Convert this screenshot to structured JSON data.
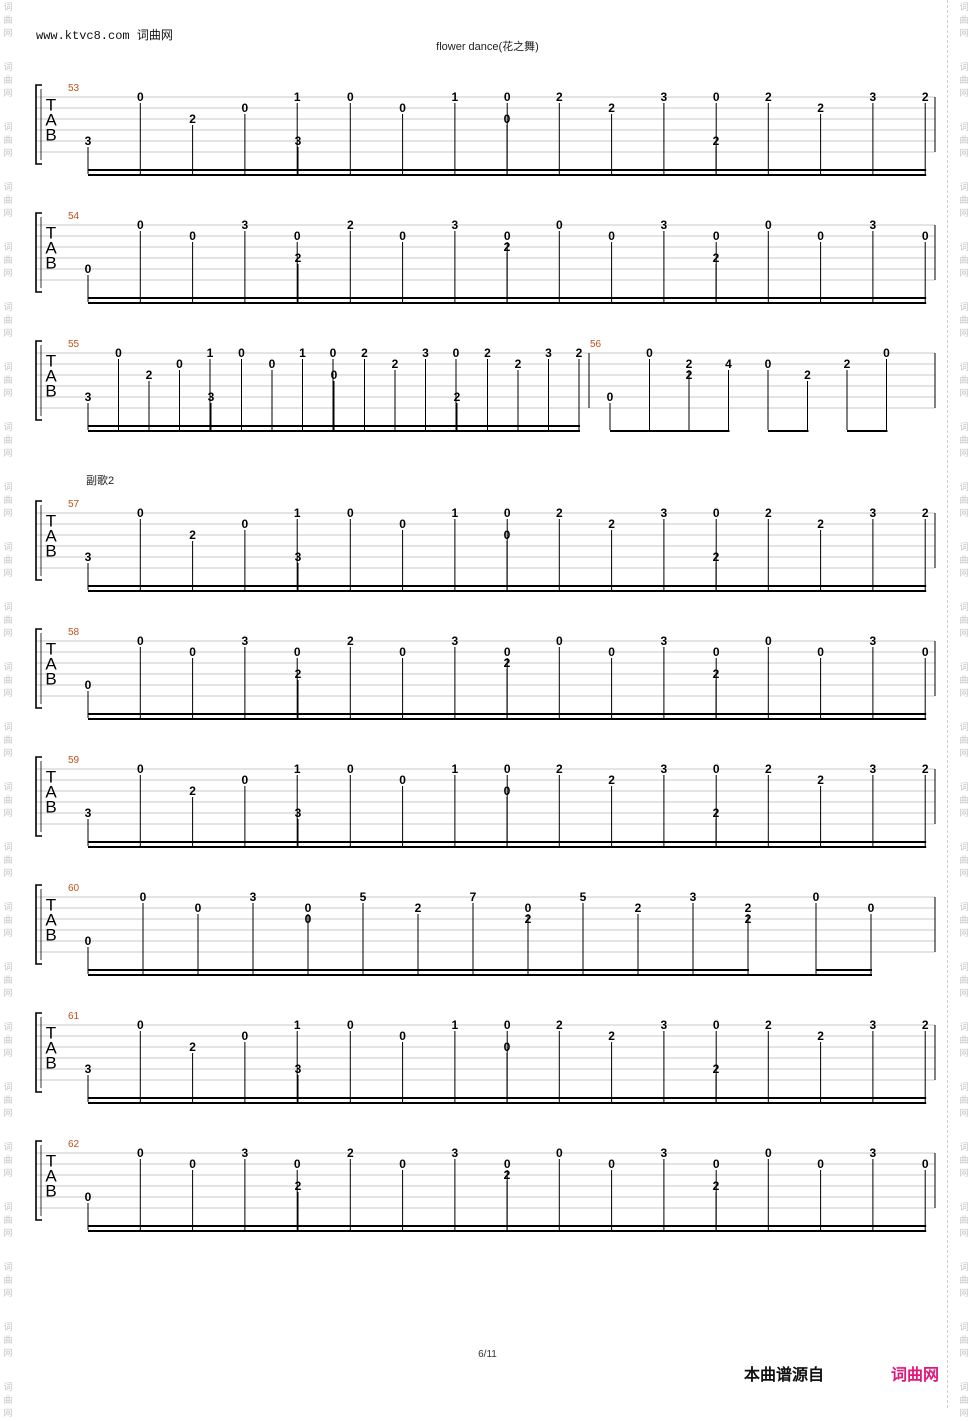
{
  "header": {
    "site": "www.ktvc8.com 词曲网",
    "title": "flower dance(花之舞)"
  },
  "section_label": "副歌2",
  "clef_letters": [
    "T",
    "A",
    "B"
  ],
  "watermark": [
    "词",
    "曲",
    "网"
  ],
  "footer": {
    "page": "6/11",
    "source": "本曲谱源自",
    "brand": "词曲网",
    "brand_color": "#e2167a"
  },
  "measure_number_color": "#c0501a",
  "systems": [
    {
      "measure": "53",
      "bars": [
        {
          "notes": [
            {
              "s": "B",
              "f": "3"
            },
            {
              "s": "T",
              "f": "0"
            },
            {
              "s": "A",
              "f": "2"
            },
            {
              "s": "TA",
              "f": "0"
            },
            {
              "s": "T",
              "f": "1"
            }
          ]
        },
        {
          "notes": [
            {
              "s": "B",
              "f": "3"
            },
            {
              "s": "T",
              "f": "0"
            },
            {
              "s": "TA",
              "f": "0"
            },
            {
              "s": "T",
              "f": "1"
            },
            {
              "s": "T",
              "f": "0"
            }
          ]
        },
        {
          "notes": [
            {
              "s": "A",
              "f": "0"
            },
            {
              "s": "T",
              "f": "2"
            },
            {
              "s": "TA",
              "f": "2"
            },
            {
              "s": "T",
              "f": "3"
            },
            {
              "s": "T",
              "f": "0"
            }
          ]
        },
        {
          "notes": [
            {
              "s": "B",
              "f": "2"
            },
            {
              "s": "T",
              "f": "2"
            },
            {
              "s": "TA",
              "f": "2"
            },
            {
              "s": "T",
              "f": "3"
            },
            {
              "s": "T",
              "f": "2"
            }
          ]
        }
      ]
    },
    {
      "measure": "54",
      "bars": [
        {
          "notes": [
            {
              "s": "B",
              "f": "0"
            },
            {
              "s": "T",
              "f": "0"
            },
            {
              "s": "TA",
              "f": "0"
            },
            {
              "s": "T",
              "f": "3"
            },
            {
              "s": "TA",
              "f": "0"
            }
          ]
        },
        {
          "notes": [
            {
              "s": "AB",
              "f": "2"
            },
            {
              "s": "T",
              "f": "2"
            },
            {
              "s": "TA",
              "f": "0"
            },
            {
              "s": "T",
              "f": "3"
            },
            {
              "s": "TA",
              "f": "0"
            }
          ]
        },
        {
          "notes": [
            {
              "s": "A",
              "f": "2"
            },
            {
              "s": "T",
              "f": "0"
            },
            {
              "s": "TA",
              "f": "0"
            },
            {
              "s": "T",
              "f": "3"
            },
            {
              "s": "TA",
              "f": "0"
            }
          ]
        },
        {
          "notes": [
            {
              "s": "AB",
              "f": "2"
            },
            {
              "s": "T",
              "f": "0"
            },
            {
              "s": "TA",
              "f": "0"
            },
            {
              "s": "T",
              "f": "3"
            },
            {
              "s": "TA",
              "f": "0"
            }
          ]
        }
      ]
    },
    {
      "measure": "55",
      "measure2": "56",
      "bars": [
        {
          "notes": [
            {
              "s": "B",
              "f": "3"
            },
            {
              "s": "T",
              "f": "0"
            },
            {
              "s": "A",
              "f": "2"
            },
            {
              "s": "TA",
              "f": "0"
            },
            {
              "s": "T",
              "f": "1"
            }
          ]
        },
        {
          "notes": [
            {
              "s": "B",
              "f": "3"
            },
            {
              "s": "T",
              "f": "0"
            },
            {
              "s": "TA",
              "f": "0"
            },
            {
              "s": "T",
              "f": "1"
            },
            {
              "s": "T",
              "f": "0"
            }
          ]
        },
        {
          "notes": [
            {
              "s": "A",
              "f": "0"
            },
            {
              "s": "T",
              "f": "2"
            },
            {
              "s": "TA",
              "f": "2"
            },
            {
              "s": "T",
              "f": "3"
            },
            {
              "s": "T",
              "f": "0"
            }
          ]
        },
        {
          "notes": [
            {
              "s": "B",
              "f": "2"
            },
            {
              "s": "T",
              "f": "2"
            },
            {
              "s": "TA",
              "f": "2"
            },
            {
              "s": "T",
              "f": "3"
            },
            {
              "s": "T",
              "f": "2"
            }
          ]
        }
      ],
      "bars2": [
        {
          "notes": [
            {
              "s": "B",
              "f": "0"
            },
            {
              "s": "T",
              "f": "0"
            },
            {
              "s": "A",
              "f": "2"
            }
          ]
        },
        {
          "notes": [
            {
              "s": "TA",
              "f": "2"
            },
            {
              "s": "TA",
              "f": "4"
            }
          ]
        },
        {
          "notes": [
            {
              "s": "TA",
              "f": "0"
            },
            {
              "s": "A",
              "f": "2"
            }
          ]
        },
        {
          "notes": [
            {
              "s": "TA",
              "f": "2"
            },
            {
              "s": "T",
              "f": "0"
            }
          ]
        }
      ]
    },
    {
      "measure": "57",
      "bars": [
        {
          "notes": [
            {
              "s": "B",
              "f": "3"
            },
            {
              "s": "T",
              "f": "0"
            },
            {
              "s": "A",
              "f": "2"
            },
            {
              "s": "TA",
              "f": "0"
            },
            {
              "s": "T",
              "f": "1"
            }
          ]
        },
        {
          "notes": [
            {
              "s": "B",
              "f": "3"
            },
            {
              "s": "T",
              "f": "0"
            },
            {
              "s": "TA",
              "f": "0"
            },
            {
              "s": "T",
              "f": "1"
            },
            {
              "s": "T",
              "f": "0"
            }
          ]
        },
        {
          "notes": [
            {
              "s": "A",
              "f": "0"
            },
            {
              "s": "T",
              "f": "2"
            },
            {
              "s": "TA",
              "f": "2"
            },
            {
              "s": "T",
              "f": "3"
            },
            {
              "s": "T",
              "f": "0"
            }
          ]
        },
        {
          "notes": [
            {
              "s": "B",
              "f": "2"
            },
            {
              "s": "T",
              "f": "2"
            },
            {
              "s": "TA",
              "f": "2"
            },
            {
              "s": "T",
              "f": "3"
            },
            {
              "s": "T",
              "f": "2"
            }
          ]
        }
      ]
    },
    {
      "measure": "58",
      "bars": [
        {
          "notes": [
            {
              "s": "B",
              "f": "0"
            },
            {
              "s": "T",
              "f": "0"
            },
            {
              "s": "TA",
              "f": "0"
            },
            {
              "s": "T",
              "f": "3"
            },
            {
              "s": "TA",
              "f": "0"
            }
          ]
        },
        {
          "notes": [
            {
              "s": "AB",
              "f": "2"
            },
            {
              "s": "T",
              "f": "2"
            },
            {
              "s": "TA",
              "f": "0"
            },
            {
              "s": "T",
              "f": "3"
            },
            {
              "s": "TA",
              "f": "0"
            }
          ]
        },
        {
          "notes": [
            {
              "s": "A",
              "f": "2"
            },
            {
              "s": "T",
              "f": "0"
            },
            {
              "s": "TA",
              "f": "0"
            },
            {
              "s": "T",
              "f": "3"
            },
            {
              "s": "TA",
              "f": "0"
            }
          ]
        },
        {
          "notes": [
            {
              "s": "AB",
              "f": "2"
            },
            {
              "s": "T",
              "f": "0"
            },
            {
              "s": "TA",
              "f": "0"
            },
            {
              "s": "T",
              "f": "3"
            },
            {
              "s": "TA",
              "f": "0"
            }
          ]
        }
      ]
    },
    {
      "measure": "59",
      "bars": [
        {
          "notes": [
            {
              "s": "B",
              "f": "3"
            },
            {
              "s": "T",
              "f": "0"
            },
            {
              "s": "A",
              "f": "2"
            },
            {
              "s": "TA",
              "f": "0"
            },
            {
              "s": "T",
              "f": "1"
            }
          ]
        },
        {
          "notes": [
            {
              "s": "B",
              "f": "3"
            },
            {
              "s": "T",
              "f": "0"
            },
            {
              "s": "TA",
              "f": "0"
            },
            {
              "s": "T",
              "f": "1"
            },
            {
              "s": "T",
              "f": "0"
            }
          ]
        },
        {
          "notes": [
            {
              "s": "A",
              "f": "0"
            },
            {
              "s": "T",
              "f": "2"
            },
            {
              "s": "TA",
              "f": "2"
            },
            {
              "s": "T",
              "f": "3"
            },
            {
              "s": "T",
              "f": "0"
            }
          ]
        },
        {
          "notes": [
            {
              "s": "B",
              "f": "2"
            },
            {
              "s": "T",
              "f": "2"
            },
            {
              "s": "TA",
              "f": "2"
            },
            {
              "s": "T",
              "f": "3"
            },
            {
              "s": "T",
              "f": "2"
            }
          ]
        }
      ]
    },
    {
      "measure": "60",
      "bars": [
        {
          "notes": [
            {
              "s": "B",
              "f": "0"
            },
            {
              "s": "T",
              "f": "0"
            },
            {
              "s": "TA",
              "f": "0"
            },
            {
              "s": "T",
              "f": "3"
            },
            {
              "s": "TA",
              "f": "0"
            }
          ]
        },
        {
          "notes": [
            {
              "s": "A",
              "f": "0"
            },
            {
              "s": "T",
              "f": "5"
            },
            {
              "s": "TA",
              "f": "2"
            },
            {
              "s": "T",
              "f": "7"
            },
            {
              "s": "TA",
              "f": "0"
            }
          ]
        },
        {
          "notes": [
            {
              "s": "A",
              "f": "2"
            },
            {
              "s": "T",
              "f": "5"
            },
            {
              "s": "TA",
              "f": "2"
            },
            {
              "s": "T",
              "f": "3"
            },
            {
              "s": "TA",
              "f": "2"
            }
          ]
        },
        {
          "notes": [
            {
              "s": "A",
              "f": "2"
            },
            {
              "s": "T",
              "f": "0"
            },
            {
              "s": "TA",
              "f": "0"
            }
          ],
          "mixed": true
        }
      ]
    },
    {
      "measure": "61",
      "bars": [
        {
          "notes": [
            {
              "s": "B",
              "f": "3"
            },
            {
              "s": "T",
              "f": "0"
            },
            {
              "s": "A",
              "f": "2"
            },
            {
              "s": "TA",
              "f": "0"
            },
            {
              "s": "T",
              "f": "1"
            }
          ]
        },
        {
          "notes": [
            {
              "s": "B",
              "f": "3"
            },
            {
              "s": "T",
              "f": "0"
            },
            {
              "s": "TA",
              "f": "0"
            },
            {
              "s": "T",
              "f": "1"
            },
            {
              "s": "T",
              "f": "0"
            }
          ]
        },
        {
          "notes": [
            {
              "s": "A",
              "f": "0"
            },
            {
              "s": "T",
              "f": "2"
            },
            {
              "s": "TA",
              "f": "2"
            },
            {
              "s": "T",
              "f": "3"
            },
            {
              "s": "T",
              "f": "0"
            }
          ]
        },
        {
          "notes": [
            {
              "s": "B",
              "f": "2"
            },
            {
              "s": "T",
              "f": "2"
            },
            {
              "s": "TA",
              "f": "2"
            },
            {
              "s": "T",
              "f": "3"
            },
            {
              "s": "T",
              "f": "2"
            }
          ]
        }
      ]
    },
    {
      "measure": "62",
      "bars": [
        {
          "notes": [
            {
              "s": "B",
              "f": "0"
            },
            {
              "s": "T",
              "f": "0"
            },
            {
              "s": "TA",
              "f": "0"
            },
            {
              "s": "T",
              "f": "3"
            },
            {
              "s": "TA",
              "f": "0"
            }
          ]
        },
        {
          "notes": [
            {
              "s": "AB",
              "f": "2"
            },
            {
              "s": "T",
              "f": "2"
            },
            {
              "s": "TA",
              "f": "0"
            },
            {
              "s": "T",
              "f": "3"
            },
            {
              "s": "TA",
              "f": "0"
            }
          ]
        },
        {
          "notes": [
            {
              "s": "A",
              "f": "2"
            },
            {
              "s": "T",
              "f": "0"
            },
            {
              "s": "TA",
              "f": "0"
            },
            {
              "s": "T",
              "f": "3"
            },
            {
              "s": "TA",
              "f": "0"
            }
          ]
        },
        {
          "notes": [
            {
              "s": "AB",
              "f": "2"
            },
            {
              "s": "T",
              "f": "0"
            },
            {
              "s": "TA",
              "f": "0"
            },
            {
              "s": "T",
              "f": "3"
            },
            {
              "s": "TA",
              "f": "0"
            }
          ]
        }
      ]
    }
  ]
}
